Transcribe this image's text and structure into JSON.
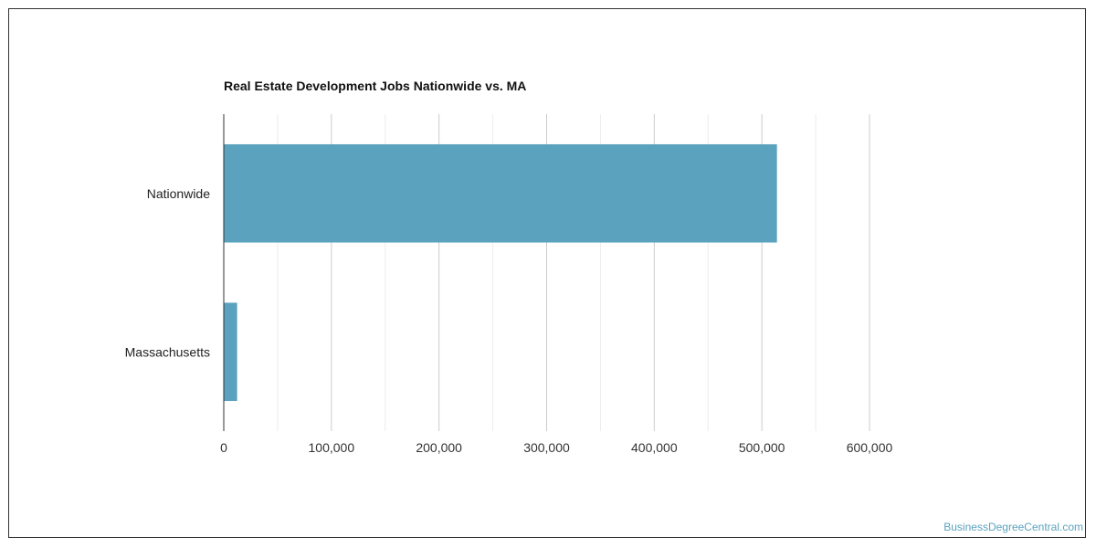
{
  "chart_data": {
    "type": "bar",
    "orientation": "horizontal",
    "title": "Real Estate Development Jobs Nationwide vs. MA",
    "xlabel": "",
    "ylabel": "",
    "categories": [
      "Nationwide",
      "Massachusetts"
    ],
    "values": [
      514000,
      12400
    ],
    "xlim": [
      0,
      600000
    ],
    "ticks": [
      0,
      100000,
      200000,
      300000,
      400000,
      500000,
      600000
    ],
    "tick_labels": [
      "0",
      "100,000",
      "200,000",
      "300,000",
      "400,000",
      "500,000",
      "600,000"
    ],
    "grid": true,
    "bar_color": "#5ba2bf"
  },
  "watermark": "BusinessDegreeCentral.com"
}
